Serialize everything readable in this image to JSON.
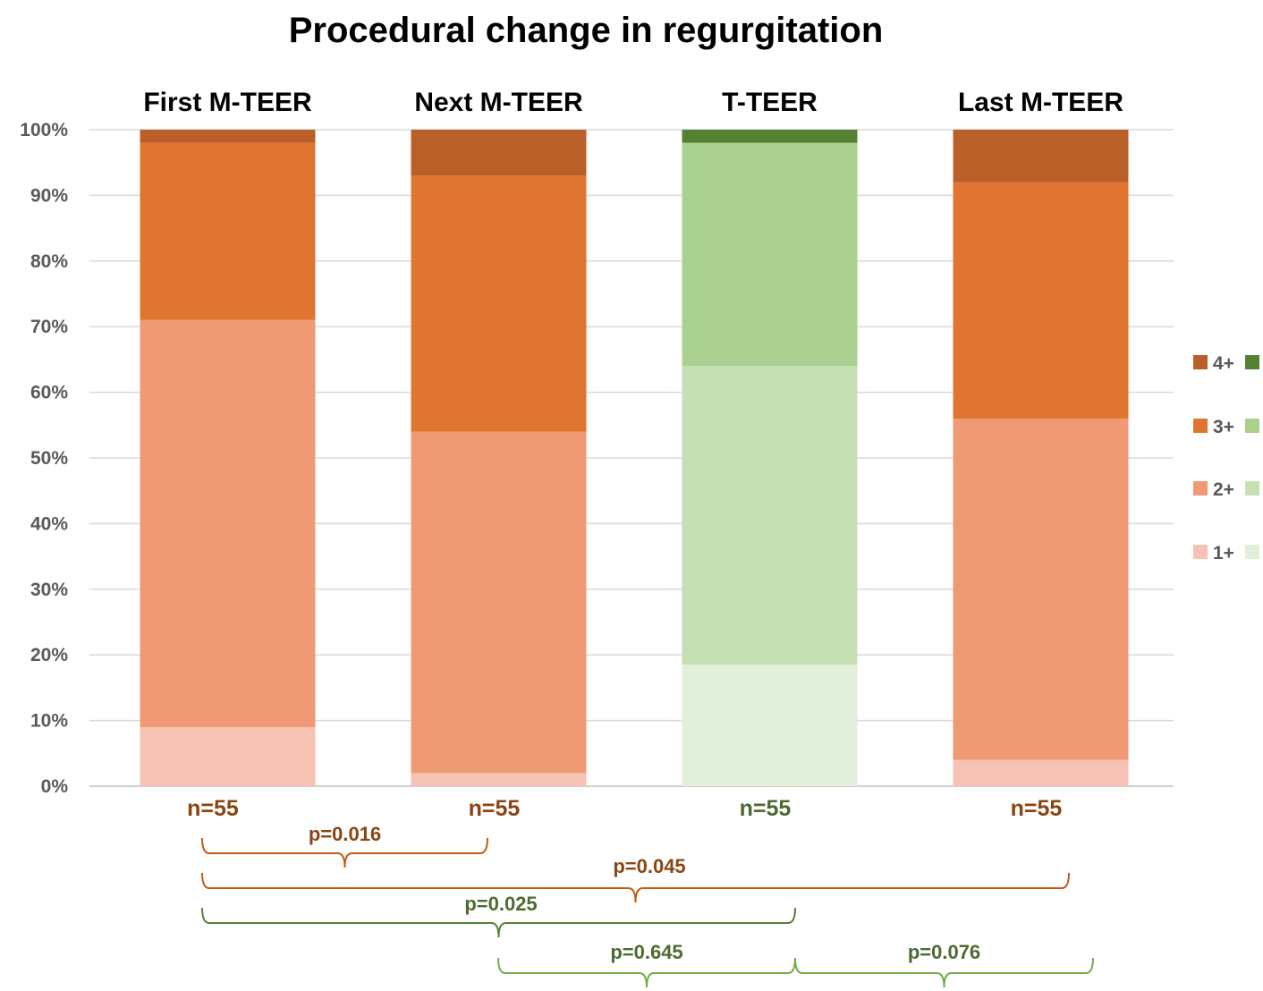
{
  "chart_data": {
    "type": "bar",
    "stacked": true,
    "title": "Procedural change in regurgitation",
    "categories": [
      "First M-TEER",
      "Next M-TEER",
      "T-TEER",
      "Last M-TEER"
    ],
    "yticks": [
      "0%",
      "10%",
      "20%",
      "30%",
      "40%",
      "50%",
      "60%",
      "70%",
      "80%",
      "90%",
      "100%"
    ],
    "ylim": [
      0,
      100
    ],
    "grid": true,
    "legend_position": "right",
    "series": [
      {
        "name": "1+",
        "values": [
          9,
          2,
          18.5,
          4
        ]
      },
      {
        "name": "2+",
        "values": [
          62,
          52,
          45.5,
          52
        ]
      },
      {
        "name": "3+",
        "values": [
          27,
          39,
          34,
          36
        ]
      },
      {
        "name": "4+",
        "values": [
          2,
          7,
          2,
          8
        ]
      }
    ],
    "colors": {
      "orange": [
        "#f5c2b3",
        "#f09a75",
        "#e07531",
        "#bb5f28"
      ],
      "green": [
        "#e2efda",
        "#c6e0b4",
        "#a9d08e",
        "#548235"
      ],
      "orange_text": "#8b4513",
      "green_text": "#4b6b30",
      "bracket_orange": "#c55a11",
      "bracket_green": "#548235",
      "bracket_light_green": "#70ad47"
    },
    "palette_per_category": [
      "orange",
      "orange",
      "green",
      "orange"
    ],
    "n_labels": [
      "n=55",
      "n=55",
      "n=55",
      "n=55"
    ],
    "comparisons": [
      {
        "label": "p=0.016",
        "from": 0,
        "to": 1,
        "color": "orange"
      },
      {
        "label": "p=0.045",
        "from": 0,
        "to": 3,
        "color": "orange"
      },
      {
        "label": "p=0.025",
        "from": 0,
        "to": 2,
        "color": "green"
      },
      {
        "label": "p=0.645",
        "from": 1,
        "to": 2,
        "color": "green"
      },
      {
        "label": "p=0.076",
        "from": 2,
        "to": 3,
        "color": "green"
      }
    ]
  }
}
